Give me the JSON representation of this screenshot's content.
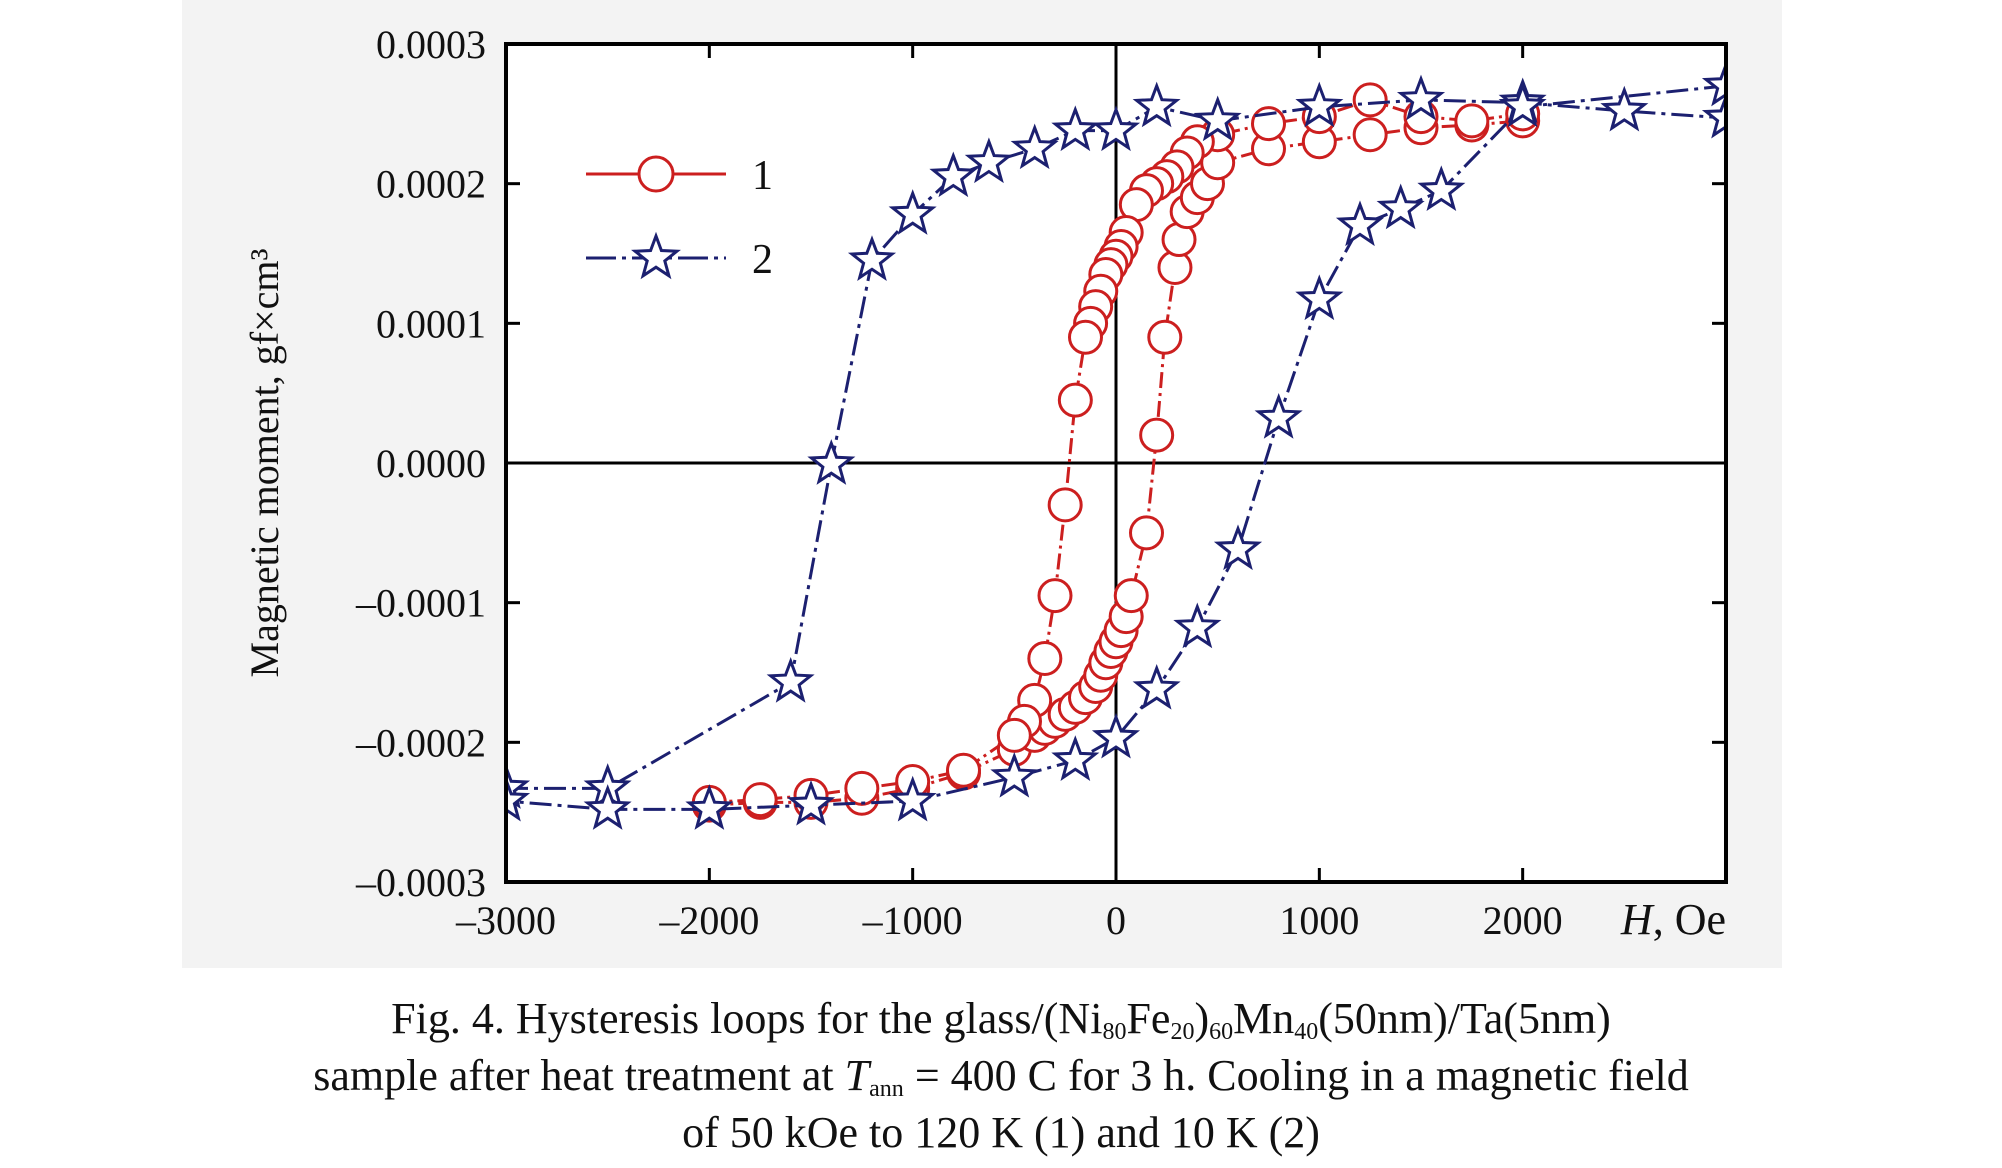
{
  "chart_data": {
    "type": "scatter",
    "xlabel": "H, Oe",
    "ylabel": "Magnetic moment, gf×cm³",
    "xlim": [
      -3000,
      3000
    ],
    "ylim": [
      -0.0003,
      0.0003
    ],
    "x_ticks": [
      -3000,
      -2000,
      -1000,
      0,
      1000,
      2000
    ],
    "x_tick_labels": [
      "–3000",
      "–2000",
      "–1000",
      "0",
      "1000",
      "2000"
    ],
    "y_ticks": [
      0.0003,
      0.0002,
      0.0001,
      0.0,
      -0.0001,
      -0.0002,
      -0.0003
    ],
    "y_tick_labels": [
      "0.0003",
      "0.0002",
      "0.0001",
      "0.0000",
      "–0.0001",
      "–0.0002",
      "–0.0003"
    ],
    "grid": false,
    "legend_position": "top-left",
    "series": [
      {
        "name": "1",
        "color": "#cc1f1f",
        "marker": "circle",
        "branches": [
          [
            [
              -2000,
              -0.000245
            ],
            [
              -1750,
              -0.000243
            ],
            [
              -1500,
              -0.000243
            ],
            [
              -1250,
              -0.00024
            ],
            [
              -1000,
              -0.000233
            ],
            [
              -750,
              -0.000222
            ],
            [
              -500,
              -0.000205
            ],
            [
              -400,
              -0.000195
            ],
            [
              -350,
              -0.00019
            ],
            [
              -300,
              -0.000185
            ],
            [
              -250,
              -0.00018
            ],
            [
              -200,
              -0.000175
            ],
            [
              -150,
              -0.000168
            ],
            [
              -100,
              -0.00016
            ],
            [
              -75,
              -0.000152
            ],
            [
              -50,
              -0.000143
            ],
            [
              -25,
              -0.000135
            ],
            [
              0,
              -0.000128
            ],
            [
              25,
              -0.00012
            ],
            [
              50,
              -0.00011
            ],
            [
              75,
              -9.5e-05
            ],
            [
              150,
              -5e-05
            ],
            [
              200,
              2e-05
            ],
            [
              240,
              9e-05
            ],
            [
              290,
              0.00014
            ],
            [
              310,
              0.00016
            ],
            [
              350,
              0.00018
            ],
            [
              400,
              0.00019
            ],
            [
              450,
              0.0002
            ],
            [
              500,
              0.000215
            ],
            [
              750,
              0.000225
            ],
            [
              1000,
              0.00023
            ],
            [
              1250,
              0.000235
            ],
            [
              1500,
              0.00024
            ],
            [
              1750,
              0.000242
            ],
            [
              2000,
              0.000245
            ]
          ],
          [
            [
              2000,
              0.00025
            ],
            [
              1750,
              0.000245
            ],
            [
              1500,
              0.000248
            ],
            [
              1250,
              0.00026
            ],
            [
              1000,
              0.000248
            ],
            [
              750,
              0.000243
            ],
            [
              500,
              0.000235
            ],
            [
              400,
              0.00023
            ],
            [
              350,
              0.000222
            ],
            [
              300,
              0.000212
            ],
            [
              250,
              0.000205
            ],
            [
              200,
              0.0002
            ],
            [
              150,
              0.000195
            ],
            [
              100,
              0.000185
            ],
            [
              50,
              0.000165
            ],
            [
              25,
              0.000155
            ],
            [
              0,
              0.000148
            ],
            [
              -25,
              0.000142
            ],
            [
              -50,
              0.000135
            ],
            [
              -75,
              0.000123
            ],
            [
              -100,
              0.000112
            ],
            [
              -125,
              0.0001
            ],
            [
              -150,
              9e-05
            ],
            [
              -200,
              4.5e-05
            ],
            [
              -250,
              -3e-05
            ],
            [
              -300,
              -9.5e-05
            ],
            [
              -350,
              -0.00014
            ],
            [
              -400,
              -0.00017
            ],
            [
              -450,
              -0.000185
            ],
            [
              -500,
              -0.000195
            ],
            [
              -750,
              -0.00022
            ],
            [
              -1000,
              -0.000228
            ],
            [
              -1250,
              -0.000233
            ],
            [
              -1500,
              -0.000238
            ],
            [
              -1750,
              -0.000241
            ],
            [
              -2000,
              -0.000243
            ]
          ]
        ]
      },
      {
        "name": "2",
        "color": "#1c2070",
        "marker": "star",
        "branches": [
          [
            [
              -3000,
              -0.000233
            ],
            [
              -2500,
              -0.000233
            ],
            [
              -1600,
              -0.000157
            ],
            [
              -1400,
              -1e-06
            ],
            [
              -1200,
              0.000145
            ],
            [
              -1000,
              0.000178
            ],
            [
              -800,
              0.000205
            ],
            [
              -625,
              0.000215
            ],
            [
              -400,
              0.000225
            ],
            [
              -200,
              0.000238
            ],
            [
              0,
              0.000238
            ],
            [
              200,
              0.000255
            ],
            [
              500,
              0.000245
            ],
            [
              1000,
              0.000255
            ],
            [
              1500,
              0.00026
            ],
            [
              2000,
              0.000258
            ],
            [
              2500,
              0.000252
            ],
            [
              3000,
              0.000247
            ]
          ],
          [
            [
              3000,
              0.00027
            ],
            [
              2000,
              0.000255
            ],
            [
              1600,
              0.000195
            ],
            [
              1400,
              0.000182
            ],
            [
              1200,
              0.00017
            ],
            [
              1000,
              0.000117
            ],
            [
              800,
              3.2e-05
            ],
            [
              600,
              -6.2e-05
            ],
            [
              400,
              -0.000118
            ],
            [
              200,
              -0.000162
            ],
            [
              0,
              -0.000197
            ],
            [
              -200,
              -0.000213
            ],
            [
              -500,
              -0.000225
            ],
            [
              -1000,
              -0.000242
            ],
            [
              -1500,
              -0.000245
            ],
            [
              -2000,
              -0.000248
            ],
            [
              -2500,
              -0.000248
            ],
            [
              -3000,
              -0.000242
            ]
          ]
        ]
      }
    ]
  },
  "caption": {
    "line1_a": "Fig. 4. Hysteresis loops for the glass/(Ni",
    "sub1": "80",
    "line1_b": "Fe",
    "sub2": "20",
    "line1_c": ")",
    "sub3": "60",
    "line1_d": "Mn",
    "sub4": "40",
    "line1_e": "(50nm)/Ta(5nm)",
    "line2_a": "sample after heat treatment at ",
    "line2_t": "T",
    "sub5": "ann",
    "line2_b": " = 400 C for 3 h. Cooling in a magnetic field",
    "line3": "of 50 kOe to 120 K (1) and 10 K (2)"
  }
}
